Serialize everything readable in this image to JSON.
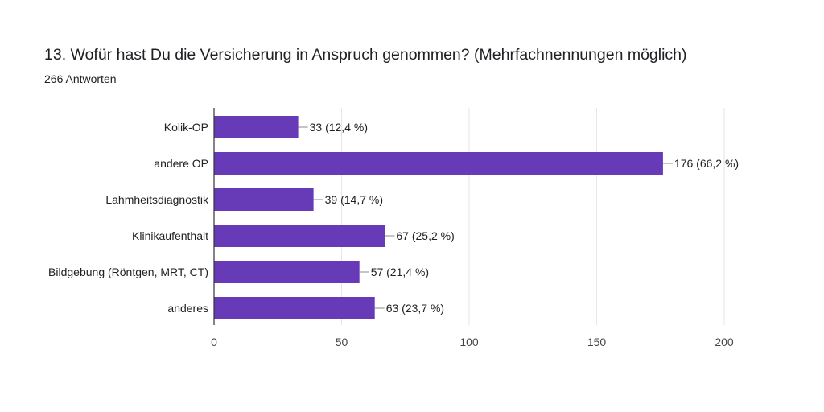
{
  "header": {
    "title": "13. Wofür hast Du die Versicherung in Anspruch genommen? (Mehrfachnennungen möglich)",
    "responses": "266 Antworten"
  },
  "colors": {
    "bar": "#673ab7",
    "grid": "#e6e6e6",
    "axis": "#333333",
    "text": "#202124",
    "tick": "#444444"
  },
  "chart_data": {
    "type": "bar",
    "orientation": "horizontal",
    "title": "13. Wofür hast Du die Versicherung in Anspruch genommen? (Mehrfachnennungen möglich)",
    "subtitle": "266 Antworten",
    "categories": [
      "Kolik-OP",
      "andere OP",
      "Lahmheitsdiagnostik",
      "Klinikaufenthalt",
      "Bildgebung (Röntgen, MRT, CT)",
      "anderes"
    ],
    "values": [
      33,
      176,
      39,
      67,
      57,
      63
    ],
    "labels": [
      "33 (12,4 %)",
      "176 (66,2 %)",
      "39 (14,7 %)",
      "67 (25,2 %)",
      "57 (21,4 %)",
      "63 (23,7 %)"
    ],
    "xlim": [
      0,
      200
    ],
    "xticks": [
      0,
      50,
      100,
      150,
      200
    ],
    "xtick_labels": [
      "0",
      "50",
      "100",
      "150",
      "200"
    ],
    "grid": true,
    "xlabel": "",
    "ylabel": ""
  }
}
